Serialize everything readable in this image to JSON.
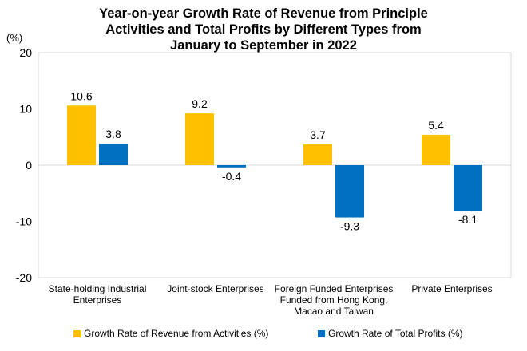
{
  "chart_data": {
    "type": "bar",
    "title_lines": [
      "Year-on-year Growth Rate of Revenue from Principle",
      "Activities and Total Profits by Different Types from",
      "January to September in 2022"
    ],
    "y_unit": "(%)",
    "ylim": [
      -20,
      20
    ],
    "yticks": [
      20,
      10,
      0,
      -10,
      -20
    ],
    "grid": false,
    "legend_position": "bottom",
    "categories": [
      [
        "State-holding Industrial",
        "Enterprises"
      ],
      [
        "Joint-stock Enterprises"
      ],
      [
        "Foreign Funded Enterprises",
        "Funded from Hong Kong,",
        "Macao and Taiwan"
      ],
      [
        "Private Enterprises"
      ]
    ],
    "series": [
      {
        "name": "Growth Rate of Revenue from Activities (%)",
        "color": "#FFC000",
        "values": [
          10.6,
          9.2,
          3.7,
          5.4
        ],
        "labels": [
          "10.6",
          "9.2",
          "3.7",
          "5.4"
        ]
      },
      {
        "name": "Growth Rate of Total Profits (%)",
        "color": "#0070C0",
        "values": [
          3.8,
          -0.4,
          -9.3,
          -8.1
        ],
        "labels": [
          "3.8",
          "-0.4",
          "-9.3",
          "-8.1"
        ]
      }
    ]
  }
}
